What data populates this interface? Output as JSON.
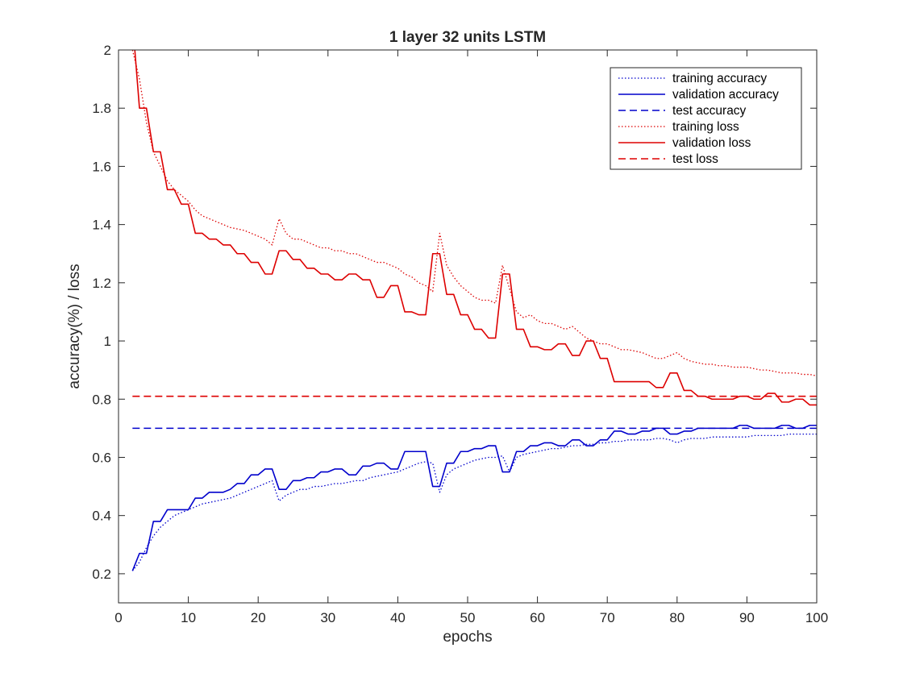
{
  "chart_data": {
    "type": "line",
    "title": "1 layer 32 units LSTM",
    "xlabel": "epochs",
    "ylabel": "accuracy(%) / loss",
    "xlim": [
      0,
      100
    ],
    "ylim": [
      0.1,
      2
    ],
    "xticks": [
      "0",
      "10",
      "20",
      "30",
      "40",
      "50",
      "60",
      "70",
      "80",
      "90",
      "100"
    ],
    "yticks": [
      "0.2",
      "0.4",
      "0.6",
      "0.8",
      "1",
      "1.2",
      "1.4",
      "1.6",
      "1.8",
      "2"
    ],
    "legend_position": "top-right",
    "series": [
      {
        "name": "training accuracy",
        "color": "#0000cc",
        "style": "dotted",
        "x": [
          2,
          3,
          4,
          5,
          6,
          7,
          8,
          9,
          10,
          11,
          12,
          13,
          14,
          15,
          16,
          17,
          18,
          19,
          20,
          21,
          22,
          23,
          24,
          25,
          26,
          27,
          28,
          29,
          30,
          31,
          32,
          33,
          34,
          35,
          36,
          37,
          38,
          39,
          40,
          41,
          42,
          43,
          44,
          45,
          46,
          47,
          48,
          49,
          50,
          51,
          52,
          53,
          54,
          55,
          56,
          57,
          58,
          59,
          60,
          61,
          62,
          63,
          64,
          65,
          66,
          67,
          68,
          69,
          70,
          71,
          72,
          73,
          74,
          75,
          76,
          77,
          78,
          79,
          80,
          81,
          82,
          83,
          84,
          85,
          86,
          87,
          88,
          89,
          90,
          91,
          92,
          93,
          94,
          95,
          96,
          97,
          98,
          99,
          100
        ],
        "values": [
          0.21,
          0.24,
          0.29,
          0.33,
          0.36,
          0.38,
          0.4,
          0.41,
          0.42,
          0.43,
          0.44,
          0.445,
          0.45,
          0.455,
          0.46,
          0.47,
          0.48,
          0.49,
          0.5,
          0.51,
          0.52,
          0.45,
          0.47,
          0.48,
          0.49,
          0.49,
          0.5,
          0.5,
          0.505,
          0.51,
          0.51,
          0.515,
          0.52,
          0.52,
          0.53,
          0.535,
          0.54,
          0.545,
          0.55,
          0.56,
          0.57,
          0.58,
          0.585,
          0.58,
          0.48,
          0.54,
          0.56,
          0.57,
          0.58,
          0.59,
          0.595,
          0.6,
          0.6,
          0.605,
          0.55,
          0.6,
          0.61,
          0.615,
          0.62,
          0.625,
          0.63,
          0.63,
          0.635,
          0.64,
          0.64,
          0.645,
          0.645,
          0.65,
          0.65,
          0.655,
          0.655,
          0.66,
          0.66,
          0.66,
          0.66,
          0.665,
          0.665,
          0.66,
          0.65,
          0.66,
          0.665,
          0.665,
          0.665,
          0.67,
          0.67,
          0.67,
          0.67,
          0.67,
          0.67,
          0.675,
          0.675,
          0.675,
          0.675,
          0.675,
          0.68,
          0.68,
          0.68,
          0.68,
          0.68
        ]
      },
      {
        "name": "validation accuracy",
        "color": "#0000cc",
        "style": "solid",
        "x": [
          2,
          3,
          4,
          5,
          6,
          7,
          8,
          9,
          10,
          11,
          12,
          13,
          14,
          15,
          16,
          17,
          18,
          19,
          20,
          21,
          22,
          23,
          24,
          25,
          26,
          27,
          28,
          29,
          30,
          31,
          32,
          33,
          34,
          35,
          36,
          37,
          38,
          39,
          40,
          41,
          42,
          43,
          44,
          45,
          46,
          47,
          48,
          49,
          50,
          51,
          52,
          53,
          54,
          55,
          56,
          57,
          58,
          59,
          60,
          61,
          62,
          63,
          64,
          65,
          66,
          67,
          68,
          69,
          70,
          71,
          72,
          73,
          74,
          75,
          76,
          77,
          78,
          79,
          80,
          81,
          82,
          83,
          84,
          85,
          86,
          87,
          88,
          89,
          90,
          91,
          92,
          93,
          94,
          95,
          96,
          97,
          98,
          99,
          100
        ],
        "values": [
          0.21,
          0.27,
          0.27,
          0.38,
          0.38,
          0.42,
          0.42,
          0.42,
          0.42,
          0.46,
          0.46,
          0.48,
          0.48,
          0.48,
          0.49,
          0.51,
          0.51,
          0.54,
          0.54,
          0.56,
          0.56,
          0.49,
          0.49,
          0.52,
          0.52,
          0.53,
          0.53,
          0.55,
          0.55,
          0.56,
          0.56,
          0.54,
          0.54,
          0.57,
          0.57,
          0.58,
          0.58,
          0.56,
          0.56,
          0.62,
          0.62,
          0.62,
          0.62,
          0.5,
          0.5,
          0.58,
          0.58,
          0.62,
          0.62,
          0.63,
          0.63,
          0.64,
          0.64,
          0.55,
          0.55,
          0.62,
          0.62,
          0.64,
          0.64,
          0.65,
          0.65,
          0.64,
          0.64,
          0.66,
          0.66,
          0.64,
          0.64,
          0.66,
          0.66,
          0.69,
          0.69,
          0.68,
          0.68,
          0.69,
          0.69,
          0.7,
          0.7,
          0.68,
          0.68,
          0.69,
          0.69,
          0.7,
          0.7,
          0.7,
          0.7,
          0.7,
          0.7,
          0.71,
          0.71,
          0.7,
          0.7,
          0.7,
          0.7,
          0.71,
          0.71,
          0.7,
          0.7,
          0.71,
          0.71
        ]
      },
      {
        "name": "test accuracy",
        "color": "#0000cc",
        "style": "dashed",
        "x": [
          2,
          100
        ],
        "values": [
          0.7,
          0.7
        ]
      },
      {
        "name": "training loss",
        "color": "#dd0000",
        "style": "dotted",
        "x": [
          2,
          3,
          4,
          5,
          6,
          7,
          8,
          9,
          10,
          11,
          12,
          13,
          14,
          15,
          16,
          17,
          18,
          19,
          20,
          21,
          22,
          23,
          24,
          25,
          26,
          27,
          28,
          29,
          30,
          31,
          32,
          33,
          34,
          35,
          36,
          37,
          38,
          39,
          40,
          41,
          42,
          43,
          44,
          45,
          46,
          47,
          48,
          49,
          50,
          51,
          52,
          53,
          54,
          55,
          56,
          57,
          58,
          59,
          60,
          61,
          62,
          63,
          64,
          65,
          66,
          67,
          68,
          69,
          70,
          71,
          72,
          73,
          74,
          75,
          76,
          77,
          78,
          79,
          80,
          81,
          82,
          83,
          84,
          85,
          86,
          87,
          88,
          89,
          90,
          91,
          92,
          93,
          94,
          95,
          96,
          97,
          98,
          99,
          100
        ],
        "values": [
          2.0,
          1.9,
          1.75,
          1.65,
          1.6,
          1.55,
          1.52,
          1.5,
          1.48,
          1.45,
          1.43,
          1.42,
          1.41,
          1.4,
          1.39,
          1.385,
          1.38,
          1.37,
          1.36,
          1.35,
          1.33,
          1.42,
          1.37,
          1.35,
          1.35,
          1.34,
          1.33,
          1.32,
          1.32,
          1.31,
          1.31,
          1.3,
          1.3,
          1.29,
          1.28,
          1.27,
          1.27,
          1.26,
          1.25,
          1.23,
          1.22,
          1.2,
          1.19,
          1.17,
          1.37,
          1.26,
          1.22,
          1.19,
          1.17,
          1.15,
          1.14,
          1.14,
          1.13,
          1.26,
          1.18,
          1.1,
          1.08,
          1.09,
          1.07,
          1.06,
          1.06,
          1.05,
          1.04,
          1.05,
          1.03,
          1.01,
          1.0,
          0.99,
          0.99,
          0.98,
          0.97,
          0.97,
          0.965,
          0.96,
          0.95,
          0.94,
          0.94,
          0.95,
          0.96,
          0.94,
          0.93,
          0.925,
          0.92,
          0.92,
          0.915,
          0.915,
          0.91,
          0.91,
          0.91,
          0.905,
          0.9,
          0.9,
          0.895,
          0.89,
          0.89,
          0.89,
          0.885,
          0.885,
          0.88
        ]
      },
      {
        "name": "validation loss",
        "color": "#dd0000",
        "style": "solid",
        "x": [
          2,
          3,
          4,
          5,
          6,
          7,
          8,
          9,
          10,
          11,
          12,
          13,
          14,
          15,
          16,
          17,
          18,
          19,
          20,
          21,
          22,
          23,
          24,
          25,
          26,
          27,
          28,
          29,
          30,
          31,
          32,
          33,
          34,
          35,
          36,
          37,
          38,
          39,
          40,
          41,
          42,
          43,
          44,
          45,
          46,
          47,
          48,
          49,
          50,
          51,
          52,
          53,
          54,
          55,
          56,
          57,
          58,
          59,
          60,
          61,
          62,
          63,
          64,
          65,
          66,
          67,
          68,
          69,
          70,
          71,
          72,
          73,
          74,
          75,
          76,
          77,
          78,
          79,
          80,
          81,
          82,
          83,
          84,
          85,
          86,
          87,
          88,
          89,
          90,
          91,
          92,
          93,
          94,
          95,
          96,
          97,
          98,
          99,
          100
        ],
        "values": [
          2.1,
          1.8,
          1.8,
          1.65,
          1.65,
          1.52,
          1.52,
          1.47,
          1.47,
          1.37,
          1.37,
          1.35,
          1.35,
          1.33,
          1.33,
          1.3,
          1.3,
          1.27,
          1.27,
          1.23,
          1.23,
          1.31,
          1.31,
          1.28,
          1.28,
          1.25,
          1.25,
          1.23,
          1.23,
          1.21,
          1.21,
          1.23,
          1.23,
          1.21,
          1.21,
          1.15,
          1.15,
          1.19,
          1.19,
          1.1,
          1.1,
          1.09,
          1.09,
          1.3,
          1.3,
          1.16,
          1.16,
          1.09,
          1.09,
          1.04,
          1.04,
          1.01,
          1.01,
          1.23,
          1.23,
          1.04,
          1.04,
          0.98,
          0.98,
          0.97,
          0.97,
          0.99,
          0.99,
          0.95,
          0.95,
          1.0,
          1.0,
          0.94,
          0.94,
          0.86,
          0.86,
          0.86,
          0.86,
          0.86,
          0.86,
          0.84,
          0.84,
          0.89,
          0.89,
          0.83,
          0.83,
          0.81,
          0.81,
          0.8,
          0.8,
          0.8,
          0.8,
          0.81,
          0.81,
          0.8,
          0.8,
          0.82,
          0.82,
          0.79,
          0.79,
          0.8,
          0.8,
          0.78,
          0.78
        ]
      },
      {
        "name": "test loss",
        "color": "#dd0000",
        "style": "dashed",
        "x": [
          2,
          100
        ],
        "values": [
          0.81,
          0.81
        ]
      }
    ]
  }
}
